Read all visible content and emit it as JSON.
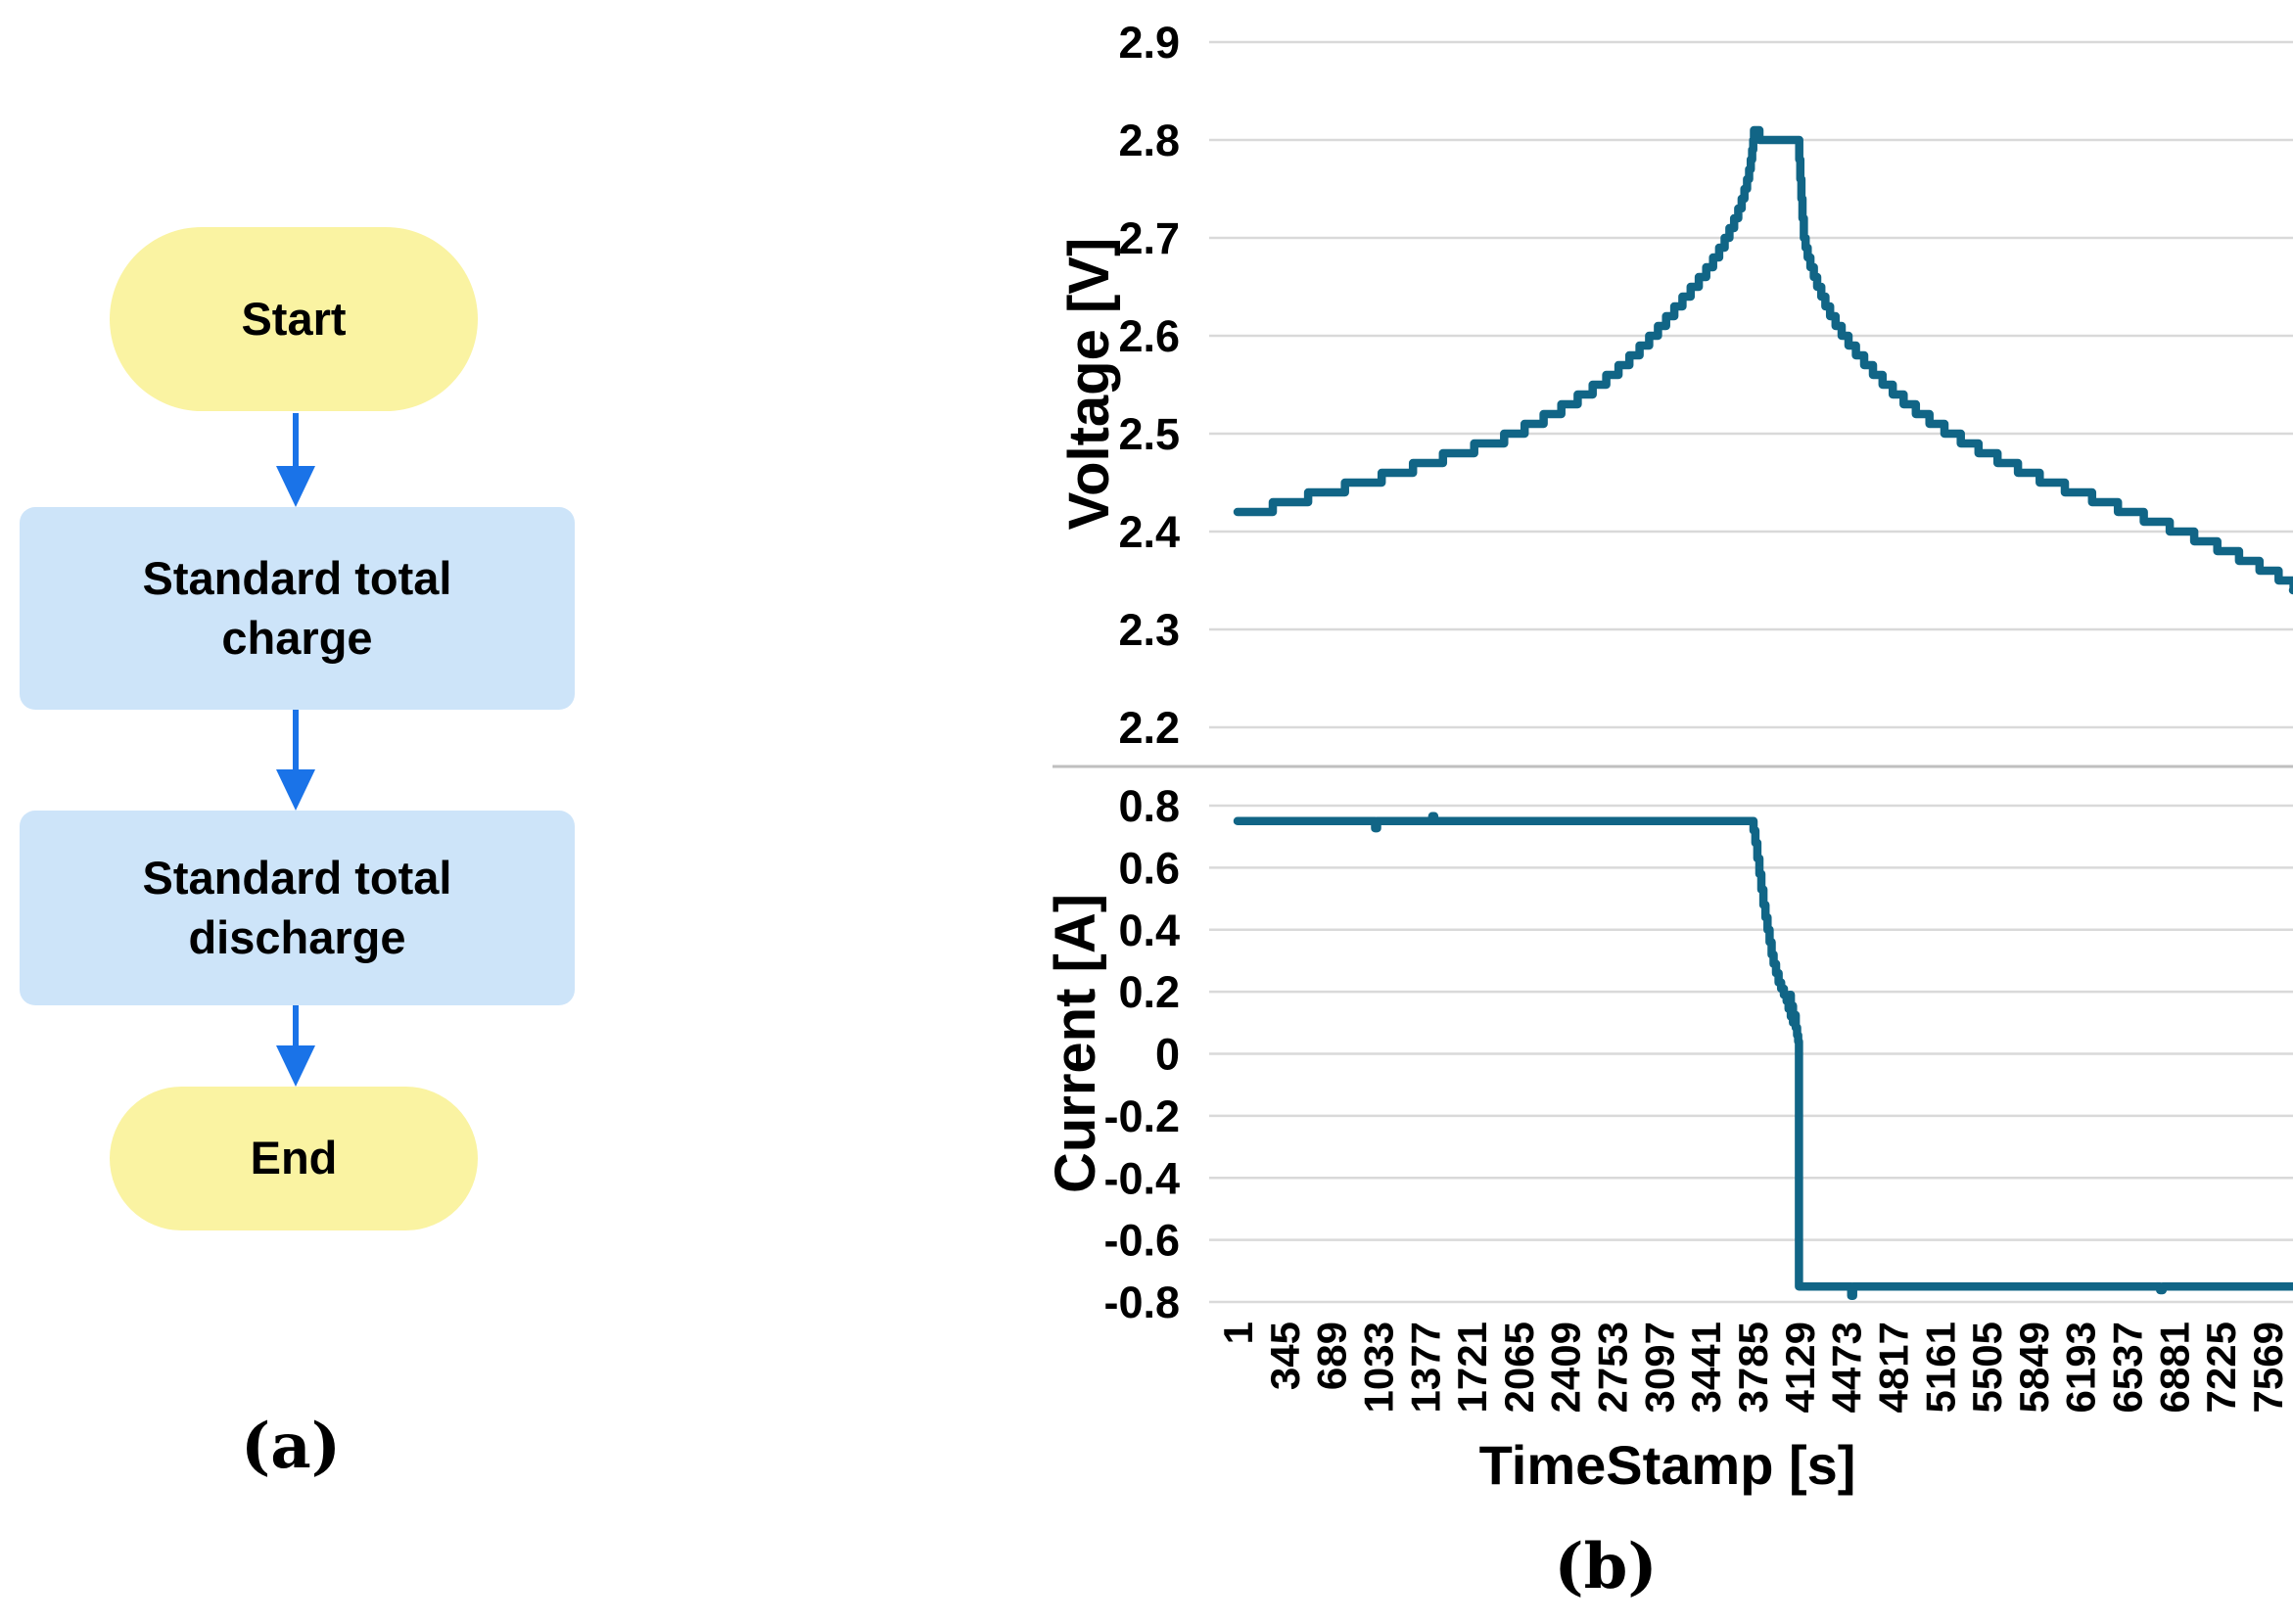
{
  "figure": {
    "panel_a": {
      "caption": "(a)",
      "nodes": [
        {
          "label": "Start",
          "type": "terminal"
        },
        {
          "label": "Standard total charge",
          "type": "process"
        },
        {
          "label": "Standard total discharge",
          "type": "process"
        },
        {
          "label": "End",
          "type": "terminal"
        }
      ],
      "colors": {
        "terminal_fill": "#FAF3A2",
        "process_fill": "#CDE4F9",
        "arrow": "#1A73E8",
        "text": "#000000"
      }
    },
    "panel_b": {
      "caption": "(b)",
      "xlabel": "TimeStamp [s]",
      "line_color": "#116586",
      "gridline_color": "#D9D9D9",
      "axis_color": "#BFBFBF"
    }
  },
  "chart_data": [
    {
      "type": "line",
      "panel": "b-top",
      "title": "",
      "ylabel": "Voltage [V]",
      "xlabel": "",
      "ylim": [
        2.2,
        2.9
      ],
      "yticks": [
        2.9,
        2.8,
        2.7,
        2.6,
        2.5,
        2.4,
        2.3,
        2.2
      ],
      "xlim": [
        1,
        7913
      ],
      "grid": true,
      "legend": "none",
      "line_color": "#116586",
      "series": [
        {
          "name": "Voltage",
          "points": [
            [
              1,
              2.42
            ],
            [
              260,
              2.43
            ],
            [
              520,
              2.44
            ],
            [
              790,
              2.45
            ],
            [
              1060,
              2.46
            ],
            [
              1290,
              2.47
            ],
            [
              1510,
              2.48
            ],
            [
              1740,
              2.49
            ],
            [
              1960,
              2.5
            ],
            [
              2110,
              2.51
            ],
            [
              2250,
              2.52
            ],
            [
              2380,
              2.53
            ],
            [
              2500,
              2.54
            ],
            [
              2610,
              2.55
            ],
            [
              2710,
              2.56
            ],
            [
              2800,
              2.57
            ],
            [
              2880,
              2.58
            ],
            [
              2955,
              2.59
            ],
            [
              3025,
              2.6
            ],
            [
              3090,
              2.61
            ],
            [
              3150,
              2.62
            ],
            [
              3210,
              2.63
            ],
            [
              3270,
              2.64
            ],
            [
              3330,
              2.65
            ],
            [
              3390,
              2.66
            ],
            [
              3445,
              2.67
            ],
            [
              3495,
              2.68
            ],
            [
              3540,
              2.69
            ],
            [
              3580,
              2.7
            ],
            [
              3615,
              2.71
            ],
            [
              3650,
              2.72
            ],
            [
              3680,
              2.73
            ],
            [
              3705,
              2.74
            ],
            [
              3725,
              2.75
            ],
            [
              3745,
              2.76
            ],
            [
              3760,
              2.77
            ],
            [
              3772,
              2.78
            ],
            [
              3782,
              2.79
            ],
            [
              3790,
              2.8
            ],
            [
              3796,
              2.81
            ],
            [
              3835,
              2.8
            ],
            [
              4120,
              2.8
            ],
            [
              4128,
              2.78
            ],
            [
              4136,
              2.76
            ],
            [
              4144,
              2.74
            ],
            [
              4152,
              2.72
            ],
            [
              4162,
              2.7
            ],
            [
              4175,
              2.69
            ],
            [
              4190,
              2.68
            ],
            [
              4210,
              2.67
            ],
            [
              4235,
              2.66
            ],
            [
              4260,
              2.65
            ],
            [
              4290,
              2.64
            ],
            [
              4320,
              2.63
            ],
            [
              4355,
              2.62
            ],
            [
              4395,
              2.61
            ],
            [
              4440,
              2.6
            ],
            [
              4490,
              2.59
            ],
            [
              4545,
              2.58
            ],
            [
              4605,
              2.57
            ],
            [
              4670,
              2.56
            ],
            [
              4740,
              2.55
            ],
            [
              4815,
              2.54
            ],
            [
              4895,
              2.53
            ],
            [
              4985,
              2.52
            ],
            [
              5085,
              2.51
            ],
            [
              5195,
              2.5
            ],
            [
              5315,
              2.49
            ],
            [
              5445,
              2.48
            ],
            [
              5585,
              2.47
            ],
            [
              5735,
              2.46
            ],
            [
              5895,
              2.45
            ],
            [
              6080,
              2.44
            ],
            [
              6280,
              2.43
            ],
            [
              6470,
              2.42
            ],
            [
              6660,
              2.41
            ],
            [
              6850,
              2.4
            ],
            [
              7030,
              2.39
            ],
            [
              7200,
              2.38
            ],
            [
              7360,
              2.37
            ],
            [
              7510,
              2.36
            ],
            [
              7650,
              2.35
            ],
            [
              7760,
              2.34
            ]
          ]
        }
      ]
    },
    {
      "type": "line",
      "panel": "b-bottom",
      "title": "",
      "ylabel": "Current [A]",
      "xlabel": "TimeStamp [s]",
      "ylim": [
        -0.8,
        0.8
      ],
      "yticks": [
        0.8,
        0.6,
        0.4,
        0.2,
        0,
        -0.2,
        -0.4,
        -0.6,
        -0.8
      ],
      "xlim": [
        1,
        7913
      ],
      "xticks": [
        1,
        345,
        689,
        1033,
        1377,
        1721,
        2065,
        2409,
        2753,
        3097,
        3441,
        3785,
        4129,
        4473,
        4817,
        5161,
        5505,
        5849,
        6193,
        6537,
        6881,
        7225,
        7569
      ],
      "grid": true,
      "legend": "none",
      "line_color": "#116586",
      "series": [
        {
          "name": "Current",
          "points": [
            [
              1,
              0.75
            ],
            [
              1000,
              0.75
            ],
            [
              1012,
              0.727
            ],
            [
              1026,
              0.75
            ],
            [
              1420,
              0.75
            ],
            [
              1432,
              0.766
            ],
            [
              1446,
              0.75
            ],
            [
              3780,
              0.75
            ],
            [
              3792,
              0.72
            ],
            [
              3806,
              0.68
            ],
            [
              3820,
              0.63
            ],
            [
              3835,
              0.58
            ],
            [
              3850,
              0.53
            ],
            [
              3865,
              0.48
            ],
            [
              3880,
              0.44
            ],
            [
              3895,
              0.4
            ],
            [
              3910,
              0.36
            ],
            [
              3925,
              0.32
            ],
            [
              3940,
              0.29
            ],
            [
              3958,
              0.26
            ],
            [
              3976,
              0.23
            ],
            [
              3995,
              0.21
            ],
            [
              4015,
              0.19
            ],
            [
              4035,
              0.17
            ],
            [
              4050,
              0.145
            ],
            [
              4058,
              0.19
            ],
            [
              4066,
              0.12
            ],
            [
              4074,
              0.155
            ],
            [
              4082,
              0.1
            ],
            [
              4092,
              0.125
            ],
            [
              4102,
              0.085
            ],
            [
              4112,
              0.06
            ],
            [
              4120,
              0.04
            ],
            [
              4126,
              -0.75
            ],
            [
              4510,
              -0.78
            ],
            [
              4524,
              -0.75
            ],
            [
              6780,
              -0.762
            ],
            [
              6798,
              -0.75
            ],
            [
              7760,
              -0.75
            ]
          ]
        }
      ]
    }
  ]
}
